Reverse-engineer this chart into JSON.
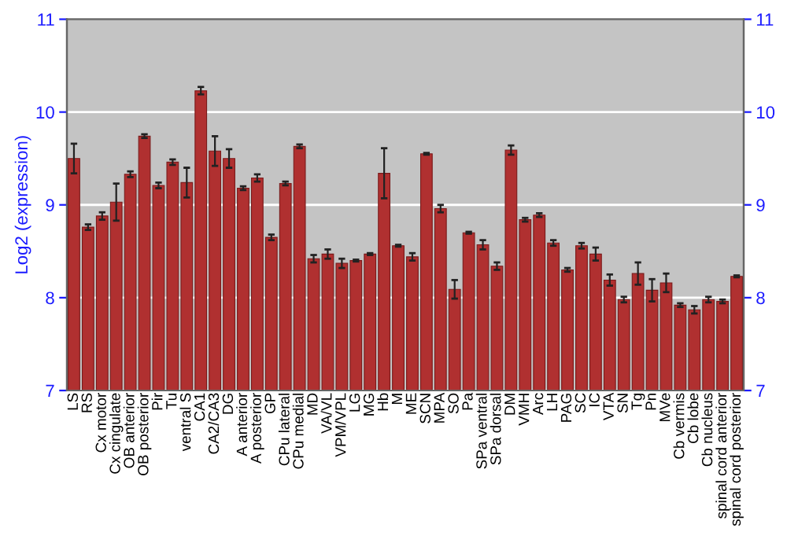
{
  "chart_data": {
    "type": "bar",
    "ylabel": "Log2 (expression)",
    "categories": [
      "LS",
      "RS",
      "Cx motor",
      "Cx cingulate",
      "OB anterior",
      "OB posterior",
      "Pir",
      "Tu",
      "ventral S",
      "CA1",
      "CA2/CA3",
      "DG",
      "A anterior",
      "A posterior",
      "GP",
      "CPu lateral",
      "CPu medial",
      "MD",
      "VA/VL",
      "VPM/VPL",
      "LG",
      "MG",
      "Hb",
      "M",
      "ME",
      "SCN",
      "MPA",
      "SO",
      "Pa",
      "SPa ventral",
      "SPa dorsal",
      "DM",
      "VMH",
      "Arc",
      "LH",
      "PAG",
      "SC",
      "IC",
      "VTA",
      "SN",
      "Tg",
      "Pn",
      "MVe",
      "Cb vermis",
      "Cb lobe",
      "Cb nucleus",
      "spinal cord anterior",
      "spinal cord posterior"
    ],
    "values": [
      9.5,
      8.76,
      8.88,
      9.03,
      9.33,
      9.74,
      9.21,
      9.46,
      9.24,
      10.23,
      9.58,
      9.5,
      9.18,
      9.29,
      8.65,
      9.23,
      9.63,
      8.42,
      8.47,
      8.37,
      8.4,
      8.47,
      9.34,
      8.56,
      8.44,
      9.55,
      8.96,
      8.09,
      8.7,
      8.57,
      8.34,
      9.59,
      8.84,
      8.89,
      8.59,
      8.3,
      8.56,
      8.47,
      8.19,
      7.98,
      8.26,
      8.08,
      8.16,
      7.92,
      7.87,
      7.98,
      7.96,
      8.23
    ],
    "errors": [
      0.16,
      0.03,
      0.04,
      0.2,
      0.03,
      0.02,
      0.03,
      0.03,
      0.16,
      0.04,
      0.16,
      0.1,
      0.02,
      0.04,
      0.03,
      0.02,
      0.02,
      0.04,
      0.05,
      0.05,
      0.01,
      0.01,
      0.27,
      0.01,
      0.04,
      0.01,
      0.04,
      0.1,
      0.01,
      0.05,
      0.04,
      0.05,
      0.02,
      0.02,
      0.03,
      0.02,
      0.03,
      0.07,
      0.06,
      0.03,
      0.12,
      0.12,
      0.1,
      0.02,
      0.04,
      0.03,
      0.02,
      0.01
    ],
    "color": "#b03030",
    "ylim": [
      7,
      11
    ],
    "yticks": [
      7,
      8,
      9,
      10,
      11
    ],
    "y2lim": [
      7,
      11
    ],
    "y2ticks": [
      7,
      8,
      9,
      10,
      11
    ],
    "grid": "y"
  }
}
